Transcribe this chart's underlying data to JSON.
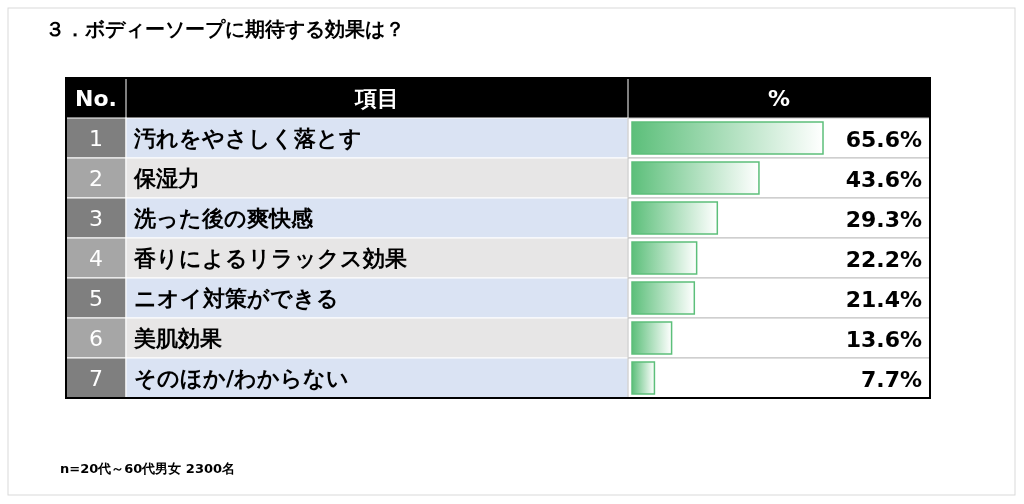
{
  "chart_data": {
    "type": "bar",
    "orientation": "horizontal",
    "title": "３．ボディーソープに期待する効果は？",
    "ylabel": "項目",
    "xlabel": "%",
    "categories": [
      "汚れをやさしく落とす",
      "保湿力",
      "洗った後の爽快感",
      "香りによるリラックス効果",
      "ニオイ対策ができる",
      "美肌効果",
      "そのほか/わからない"
    ],
    "values": [
      65.6,
      43.6,
      29.3,
      22.2,
      21.4,
      13.6,
      7.7
    ],
    "value_labels": [
      "65.6%",
      "43.6%",
      "29.3%",
      "22.2%",
      "21.4%",
      "13.6%",
      "7.7%"
    ],
    "color": "#5cbf7a",
    "annotations": [
      "No.",
      "1",
      "2",
      "3",
      "4",
      "5",
      "6",
      "7",
      "n=20代～60代男女 2300名"
    ]
  }
}
